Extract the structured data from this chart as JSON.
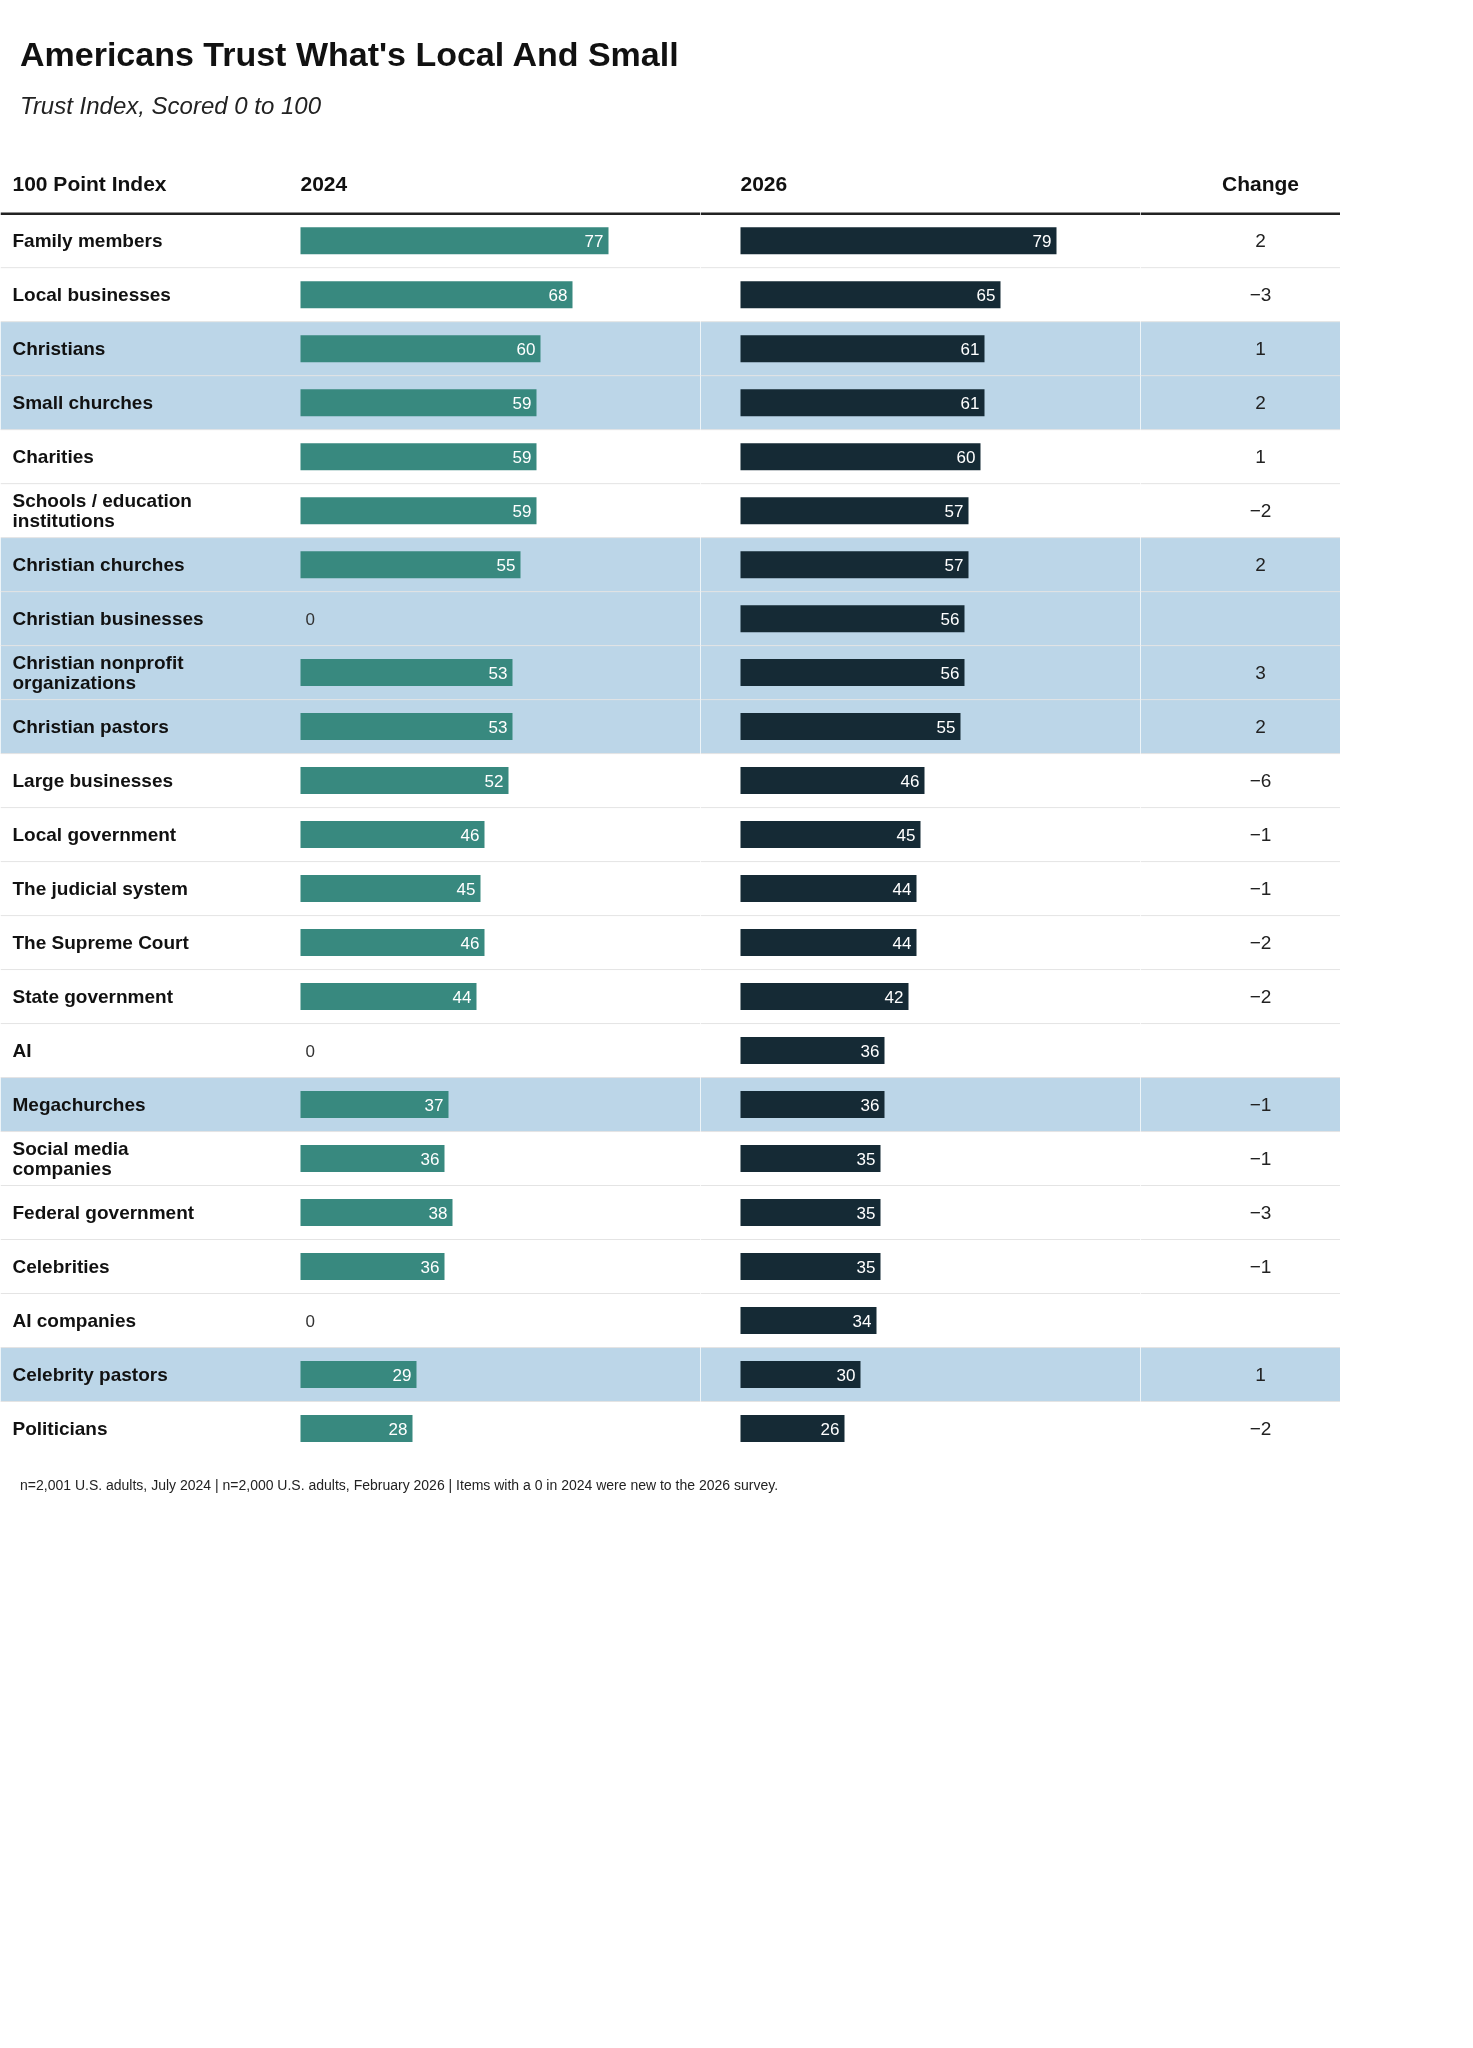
{
  "chart_data": [
    {
      "type": "bar",
      "orientation": "horizontal",
      "title": "Americans Trust What's Local And Small",
      "subtitle": "Trust Index, Scored 0 to 100",
      "ylabel": "100 Point Index",
      "categories": [
        "Family members",
        "Local businesses",
        "Christians",
        "Small churches",
        "Charities",
        "Schools / education institutions",
        "Christian churches",
        "Christian businesses",
        "Christian nonprofit organizations",
        "Christian pastors",
        "Large businesses",
        "Local government",
        "The judicial system",
        "The Supreme Court",
        "State government",
        "AI",
        "Megachurches",
        "Social media companies",
        "Federal government",
        "Celebrities",
        "AI companies",
        "Celebrity pastors",
        "Politicians"
      ],
      "series": [
        {
          "name": "2024",
          "color": "#38897f",
          "values": [
            77,
            68,
            60,
            59,
            59,
            59,
            55,
            0,
            53,
            53,
            52,
            46,
            45,
            46,
            44,
            0,
            37,
            36,
            38,
            36,
            0,
            29,
            28
          ]
        }
      ],
      "xlim": [
        0,
        100
      ],
      "data_labels": true,
      "tick_labels": "y",
      "bands": [
        {
          "axis": "y",
          "from": "Christians",
          "to": "Small churches",
          "color": "#bcd6e8"
        },
        {
          "axis": "y",
          "from": "Christian churches",
          "to": "Christian pastors",
          "color": "#bcd6e8"
        },
        {
          "axis": "y",
          "from": "Megachurches",
          "to": "Megachurches",
          "color": "#bcd6e8"
        },
        {
          "axis": "y",
          "from": "Celebrity pastors",
          "to": "Celebrity pastors",
          "color": "#bcd6e8"
        }
      ],
      "annotations": [
        "n=2,001 U.S. adults, July 2024 | n=2,000 U.S. adults, February 2026 | Items with a 0 in 2024 were new to the 2026 survey."
      ]
    },
    {
      "type": "bar",
      "orientation": "horizontal",
      "categories": [
        "Family members",
        "Local businesses",
        "Christians",
        "Small churches",
        "Charities",
        "Schools / education institutions",
        "Christian churches",
        "Christian businesses",
        "Christian nonprofit organizations",
        "Christian pastors",
        "Large businesses",
        "Local government",
        "The judicial system",
        "The Supreme Court",
        "State government",
        "AI",
        "Megachurches",
        "Social media companies",
        "Federal government",
        "Celebrities",
        "AI companies",
        "Celebrity pastors",
        "Politicians"
      ],
      "series": [
        {
          "name": "2026",
          "color": "#152a35",
          "values": [
            79,
            65,
            61,
            61,
            60,
            57,
            57,
            56,
            56,
            55,
            46,
            45,
            44,
            44,
            42,
            36,
            36,
            35,
            35,
            35,
            34,
            30,
            26
          ]
        }
      ],
      "xlim": [
        0,
        100
      ],
      "data_labels": true,
      "tick_labels": false,
      "bands": [
        {
          "axis": "y",
          "from": "Christians",
          "to": "Small churches",
          "color": "#bcd6e8"
        },
        {
          "axis": "y",
          "from": "Christian churches",
          "to": "Christian pastors",
          "color": "#bcd6e8"
        },
        {
          "axis": "y",
          "from": "Megachurches",
          "to": "Megachurches",
          "color": "#bcd6e8"
        },
        {
          "axis": "y",
          "from": "Celebrity pastors",
          "to": "Celebrity pastors",
          "color": "#bcd6e8"
        }
      ]
    },
    {
      "type": "other",
      "title": "Change",
      "values": [
        2,
        -3,
        1,
        2,
        1,
        -2,
        2,
        null,
        3,
        2,
        -6,
        -1,
        -1,
        -2,
        -2,
        null,
        -1,
        -1,
        -3,
        -1,
        null,
        1,
        -2
      ],
      "data_labels": true
    }
  ]
}
